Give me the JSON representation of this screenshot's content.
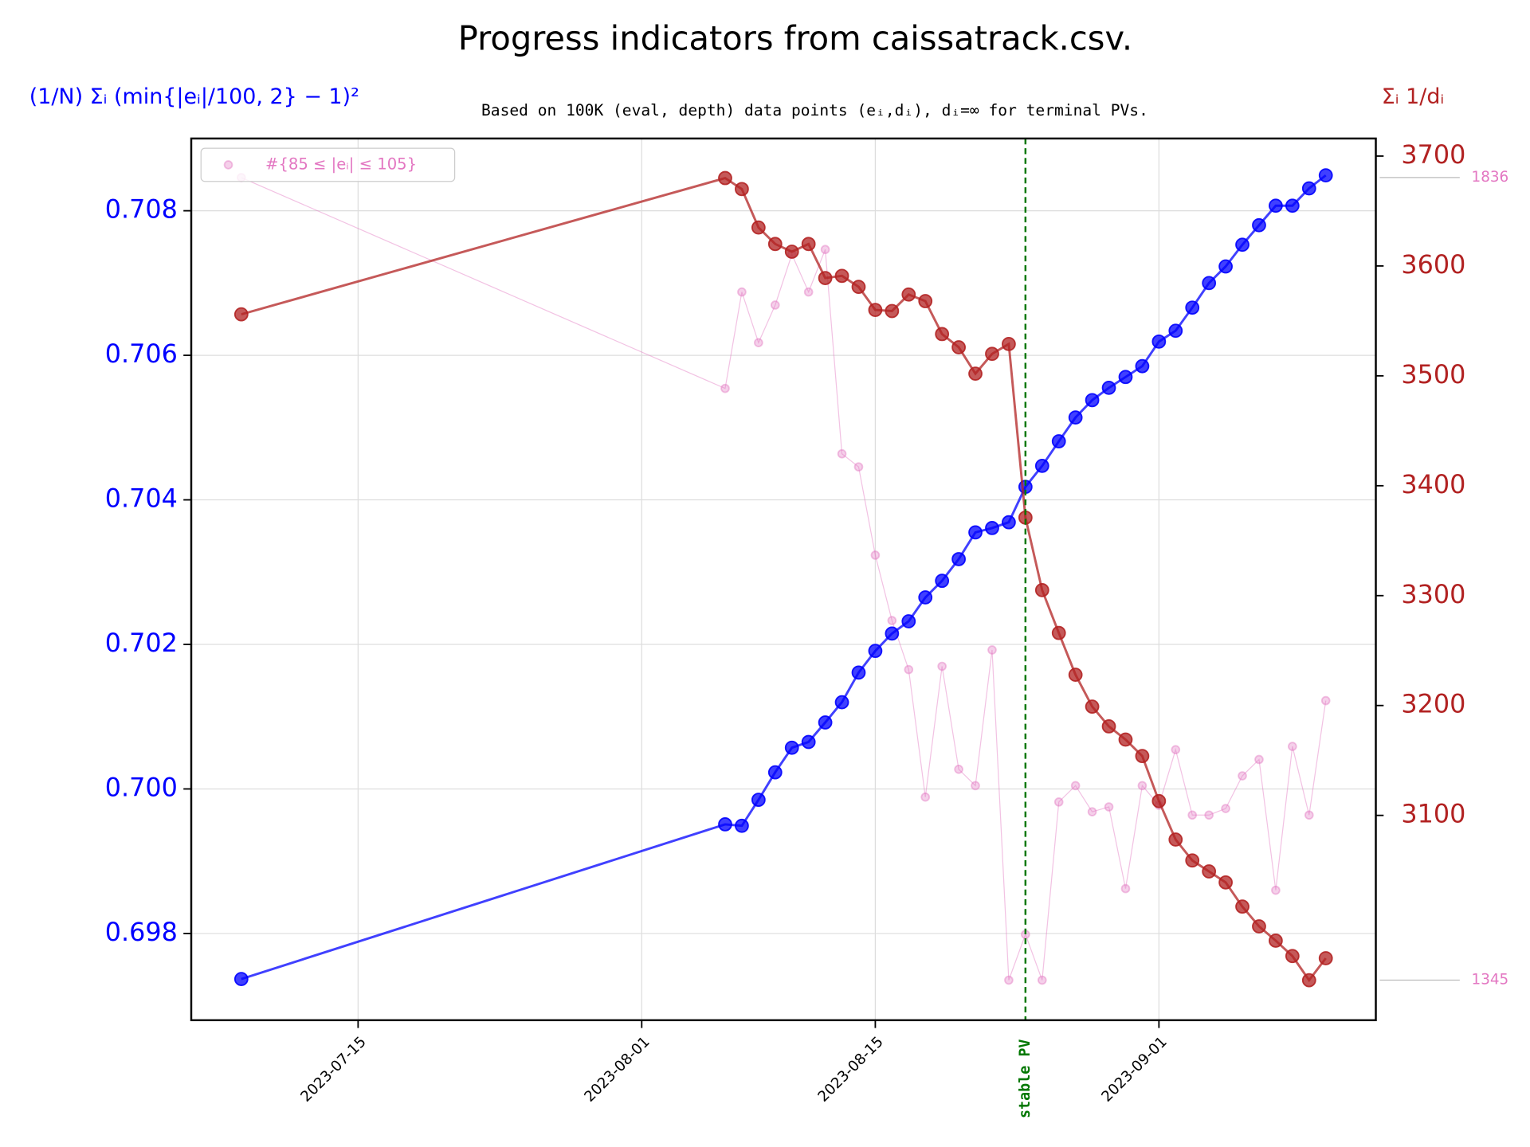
{
  "chart_data": {
    "type": "line",
    "title": "Progress indicators from caissatrack.csv.",
    "subtitle": "Based on 100K (eval, depth) data points (eᵢ,dᵢ), dᵢ=∞ for terminal PVs.",
    "ylabel": "(1/N) Σᵢ (min{|eᵢ|/100, 2} − 1)²",
    "y2label": "Σᵢ 1/dᵢ",
    "grid": true,
    "legend_loc": "upper left",
    "x": [
      "2023-07-08",
      "2023-08-06",
      "2023-08-07",
      "2023-08-08",
      "2023-08-09",
      "2023-08-10",
      "2023-08-11",
      "2023-08-12",
      "2023-08-13",
      "2023-08-14",
      "2023-08-15",
      "2023-08-16",
      "2023-08-17",
      "2023-08-18",
      "2023-08-19",
      "2023-08-20",
      "2023-08-21",
      "2023-08-22",
      "2023-08-23",
      "2023-08-24",
      "2023-08-25",
      "2023-08-26",
      "2023-08-27",
      "2023-08-28",
      "2023-08-29",
      "2023-08-30",
      "2023-08-31",
      "2023-09-01",
      "2023-09-02",
      "2023-09-03",
      "2023-09-04",
      "2023-09-05",
      "2023-09-06",
      "2023-09-07",
      "2023-09-08",
      "2023-09-09",
      "2023-09-10",
      "2023-09-11"
    ],
    "xlim": [
      "2023-07-05",
      "2023-09-14"
    ],
    "xticks": [
      "2023-07-15",
      "2023-08-01",
      "2023-08-15",
      "2023-09-01"
    ],
    "ylim": [
      0.6968,
      0.709
    ],
    "yticks": [
      0.698,
      {
        "value": 0.7,
        "label": "0.700"
      },
      0.702,
      0.704,
      0.706,
      0.708
    ],
    "y2lim": [
      2913.6,
      3716
    ],
    "y2ticks": [
      3100,
      3200,
      3300,
      3400,
      3500,
      3600,
      3700
    ],
    "y3lim": [
      1320.5,
      1859.9
    ],
    "y3ticks": [
      1345,
      1836
    ],
    "vline": {
      "x": "2023-08-24",
      "label": "stable PV",
      "color": "#007700"
    },
    "series": [
      {
        "color": "#e377c2",
        "axis": "y3",
        "name": "#{85 ≤ |eᵢ| ≤ 105}",
        "values": [
          1836,
          1707,
          1766,
          1735,
          1758,
          1789,
          1766,
          1792,
          1667,
          1659,
          1605,
          1565,
          1535,
          1457,
          1537,
          1474,
          1464,
          1547,
          1345,
          1373,
          1345,
          1454,
          1464,
          1448,
          1451,
          1401,
          1464,
          1452,
          1486,
          1446,
          1446,
          1450,
          1470,
          1480,
          1400,
          1488,
          1446,
          1516
        ]
      },
      {
        "color": "#0000ff",
        "axis": "y",
        "values": [
          0.69737,
          0.69951,
          0.69949,
          0.69985,
          0.70023,
          0.70057,
          0.70065,
          0.70092,
          0.7012,
          0.70161,
          0.70191,
          0.70215,
          0.70232,
          0.70265,
          0.70288,
          0.70318,
          0.70355,
          0.70361,
          0.70369,
          0.70418,
          0.70447,
          0.70481,
          0.70514,
          0.70538,
          0.70555,
          0.7057,
          0.70585,
          0.70619,
          0.70634,
          0.70666,
          0.707,
          0.70723,
          0.70753,
          0.7078,
          0.70807,
          0.70807,
          0.70831,
          0.70849
        ]
      },
      {
        "color": "#b22222",
        "axis": "y2",
        "values": [
          3556,
          3680,
          3670,
          3635,
          3620,
          3613,
          3620,
          3589,
          3591,
          3581,
          3560,
          3559,
          3574,
          3568,
          3538,
          3526,
          3502,
          3520,
          3529,
          3371,
          3305,
          3266,
          3228,
          3199,
          3181,
          3169,
          3154,
          3113,
          3078,
          3059,
          3049,
          3039,
          3017,
          2999,
          2986,
          2972,
          2950,
          2970
        ]
      }
    ]
  }
}
